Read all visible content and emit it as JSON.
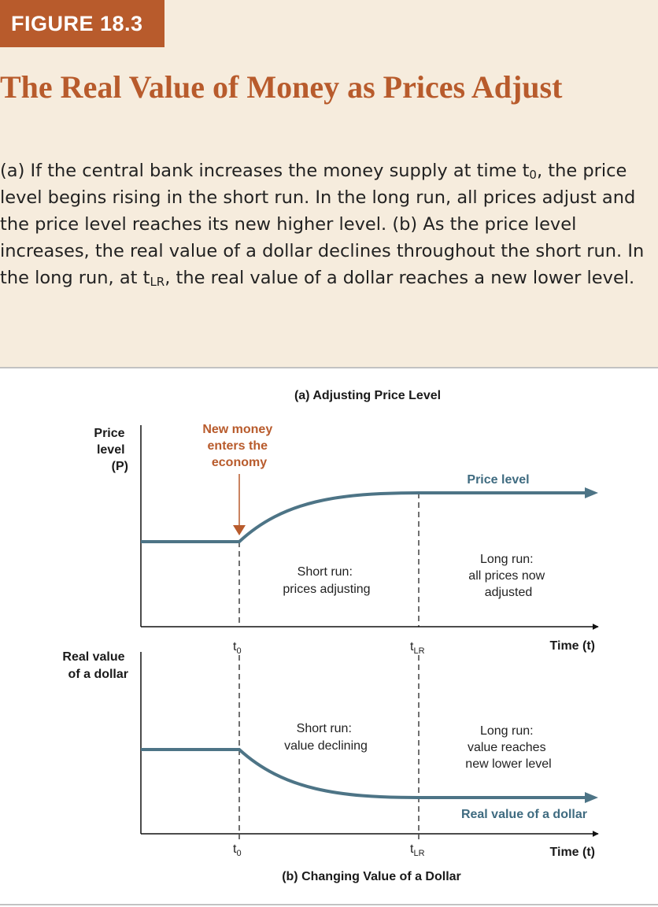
{
  "header": {
    "figure_label": "FIGURE 18.3",
    "title": "The Real Value of Money as Prices Adjust",
    "caption": {
      "p1": "(a) If the central bank increases the money supply at time t",
      "sub1": "0",
      "p2": ", the price level begins rising in the short run. In the long run, all prices adjust and the price level reaches its new higher level. (b) As the price level increases, the real value of a dollar declines throughout the short run. In the long run, at t",
      "sub2": "LR",
      "p3": ", the real value of a dollar reaches a new lower level."
    }
  },
  "colors": {
    "accent": "#b85b2c",
    "curve": "#4d7486",
    "curve_label": "#3f6b80",
    "background": "#f6ecdd",
    "text": "#222222"
  },
  "panel_a": {
    "title": "(a) Adjusting Price Level",
    "y_axis_label": [
      "Price",
      "level",
      "(P)"
    ],
    "x_axis_label": "Time (t)",
    "annotation": [
      "New money",
      "enters the",
      "economy"
    ],
    "curve_label": "Price level",
    "short_run_text": [
      "Short run:",
      "prices adjusting"
    ],
    "long_run_text": [
      "Long run:",
      "all prices now",
      "adjusted"
    ],
    "tick_t0": {
      "base": "t",
      "sub": "0"
    },
    "tick_tlr": {
      "base": "t",
      "sub": "LR"
    }
  },
  "panel_b": {
    "title": "(b) Changing Value of a Dollar",
    "y_axis_label": [
      "Real value",
      "of a dollar"
    ],
    "x_axis_label": "Time (t)",
    "curve_label": "Real value of a dollar",
    "short_run_text": [
      "Short run:",
      "value declining"
    ],
    "long_run_text": [
      "Long run:",
      "value reaches",
      "new lower level"
    ],
    "tick_t0": {
      "base": "t",
      "sub": "0"
    },
    "tick_tlr": {
      "base": "t",
      "sub": "LR"
    }
  }
}
